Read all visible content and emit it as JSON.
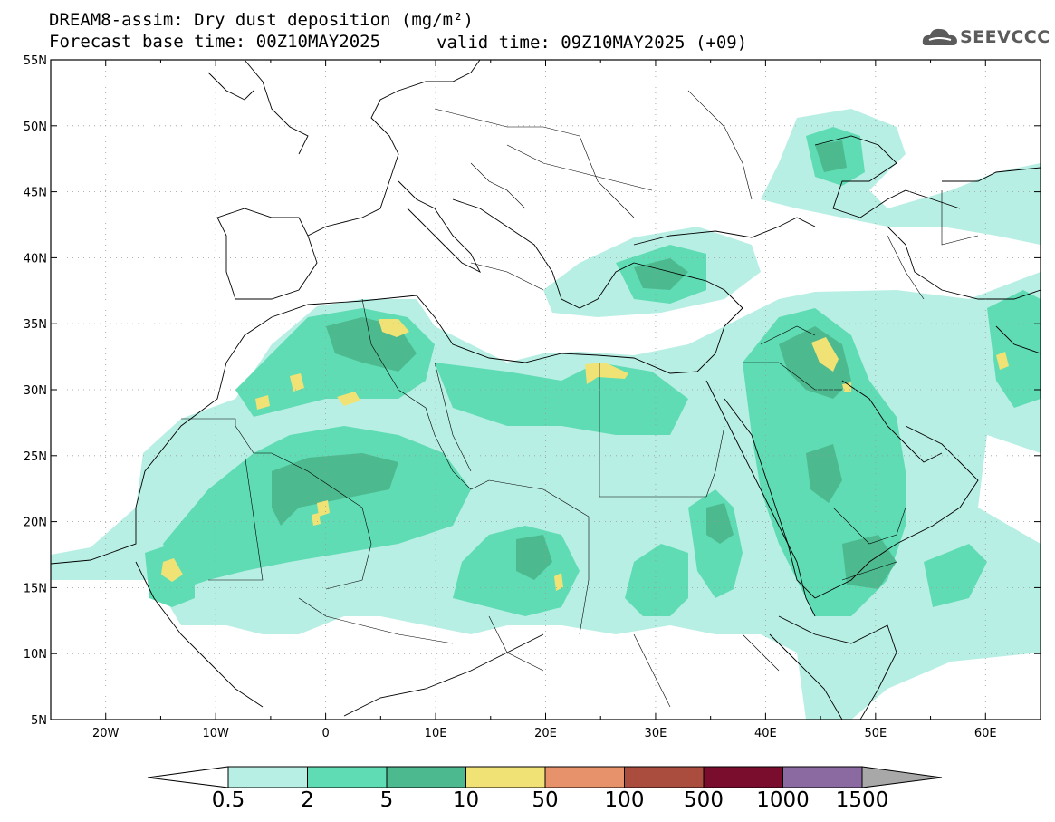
{
  "title": {
    "line1": "DREAM8-assim: Dry dust deposition (mg/m²)",
    "line2": "Forecast base time: 00Z10MAY2025",
    "valid": "valid time: 09Z10MAY2025 (+09)"
  },
  "logo": {
    "text": "SEEVCCC",
    "icon": "cloud-icon"
  },
  "axes": {
    "lat_labels": [
      "55N",
      "50N",
      "45N",
      "40N",
      "35N",
      "30N",
      "25N",
      "20N",
      "15N",
      "10N",
      "5N"
    ],
    "lon_labels": [
      "20W",
      "10W",
      "0",
      "10E",
      "20E",
      "30E",
      "40E",
      "50E",
      "60E"
    ],
    "lon_range": [
      -25,
      65
    ],
    "lat_range": [
      5,
      55
    ]
  },
  "colorbar": {
    "labels": [
      "0.5",
      "2",
      "5",
      "10",
      "50",
      "100",
      "500",
      "1000",
      "1500"
    ],
    "colors": [
      "#b8efe4",
      "#5fdcb3",
      "#4cb98f",
      "#f1e276",
      "#e8926b",
      "#aa4d3f",
      "#7a0c2d",
      "#8a6aa0",
      "#a8a8a8"
    ]
  },
  "legend_colors": {
    "c1": "#b8efe4",
    "c2": "#5fdcb3",
    "c3": "#4cb98f",
    "c4": "#f1e276"
  }
}
